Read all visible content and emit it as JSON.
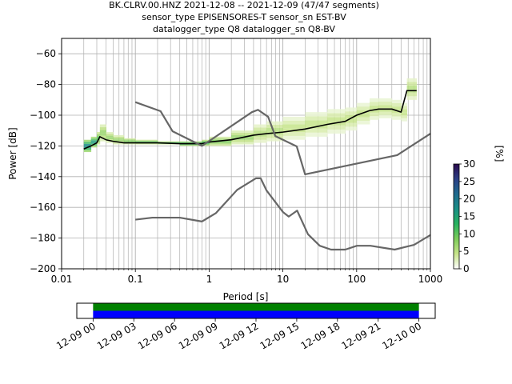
{
  "title": {
    "line1": "BK.CLRV.00.HNZ   2021-12-08 -- 2021-12-09  (47/47 segments)",
    "line2": "sensor_type EPISENSORES-T sensor_sn EST-BV",
    "line3": "datalogger_type Q8 datalogger_sn Q8-BV"
  },
  "chart_data": [
    {
      "type": "heatmap",
      "xlabel": "Period [s]",
      "ylabel": "Power [dB]",
      "x_scale": "log",
      "xlim": [
        0.01,
        1000
      ],
      "ylim": [
        -200,
        -50
      ],
      "grid": true,
      "x_ticks": [
        0.01,
        0.1,
        1,
        10,
        100,
        1000
      ],
      "x_tick_labels": [
        "0.01",
        "0.1",
        "1",
        "10",
        "100",
        "1000"
      ],
      "y_ticks": [
        -200,
        -180,
        -160,
        -140,
        -120,
        -100,
        -80,
        -60
      ],
      "y_tick_labels": [
        "−200",
        "−180",
        "−160",
        "−140",
        "−120",
        "−100",
        "−80",
        "−60"
      ],
      "colorbar": {
        "label": "[%]",
        "range": [
          0,
          30
        ],
        "ticks": [
          0,
          5,
          10,
          15,
          20,
          25,
          30
        ],
        "tick_labels": [
          "0",
          "5",
          "10",
          "15",
          "20",
          "25",
          "30"
        ],
        "colors": [
          "#ffffff",
          "#c7e48a",
          "#7ccc5a",
          "#27b35f",
          "#1a8f86",
          "#1f6b8f",
          "#2b3f85",
          "#2a0a4e"
        ]
      },
      "series": [
        {
          "role": "mode",
          "color": "#000000",
          "points": [
            [
              0.02,
              -122
            ],
            [
              0.025,
              -120
            ],
            [
              0.03,
              -118
            ],
            [
              0.033,
              -114
            ],
            [
              0.04,
              -116
            ],
            [
              0.05,
              -117
            ],
            [
              0.07,
              -118
            ],
            [
              0.1,
              -118
            ],
            [
              0.2,
              -118
            ],
            [
              0.4,
              -118.5
            ],
            [
              0.8,
              -118.5
            ],
            [
              1,
              -117.5
            ],
            [
              2,
              -116
            ],
            [
              4,
              -113
            ],
            [
              6,
              -112
            ],
            [
              10,
              -111
            ],
            [
              20,
              -109
            ],
            [
              40,
              -106
            ],
            [
              70,
              -104
            ],
            [
              100,
              -100
            ],
            [
              150,
              -97
            ],
            [
              200,
              -96
            ],
            [
              300,
              -96
            ],
            [
              400,
              -98
            ],
            [
              480,
              -84
            ],
            [
              600,
              -84
            ],
            [
              650,
              -84
            ]
          ]
        },
        {
          "role": "noise-model-high",
          "color": "#666666",
          "points": [
            [
              0.1,
              -91.5
            ],
            [
              0.22,
              -97.4
            ],
            [
              0.32,
              -110.5
            ],
            [
              0.8,
              -120
            ],
            [
              3.8,
              -98
            ],
            [
              4.6,
              -96.5
            ],
            [
              6.3,
              -101
            ],
            [
              7.9,
              -113.6
            ],
            [
              15.4,
              -120.3
            ],
            [
              20,
              -138.5
            ],
            [
              354.8,
              -126
            ],
            [
              1000,
              -112
            ]
          ]
        },
        {
          "role": "noise-model-low",
          "color": "#666666",
          "points": [
            [
              0.1,
              -168
            ],
            [
              0.17,
              -166.7
            ],
            [
              0.4,
              -166.7
            ],
            [
              0.8,
              -169.2
            ],
            [
              1.24,
              -163.7
            ],
            [
              2.4,
              -148.6
            ],
            [
              4.3,
              -141.1
            ],
            [
              5,
              -141.1
            ],
            [
              6,
              -149
            ],
            [
              10,
              -163
            ],
            [
              12,
              -166
            ],
            [
              15.6,
              -162.1
            ],
            [
              21.9,
              -177.5
            ],
            [
              31.6,
              -185
            ],
            [
              45,
              -187.5
            ],
            [
              70,
              -187.5
            ],
            [
              101,
              -185
            ],
            [
              154,
              -185
            ],
            [
              328,
              -187.5
            ],
            [
              600,
              -184.4
            ],
            [
              1000,
              -178
            ]
          ]
        }
      ],
      "histogram_band": [
        [
          0.02,
          -124,
          -116,
          20
        ],
        [
          0.025,
          -121,
          -114,
          18
        ],
        [
          0.03,
          -119,
          -111,
          12
        ],
        [
          0.033,
          -117,
          -106,
          8
        ],
        [
          0.04,
          -118,
          -111,
          8
        ],
        [
          0.05,
          -119,
          -113,
          8
        ],
        [
          0.07,
          -119,
          -115,
          10
        ],
        [
          0.1,
          -119,
          -116,
          12
        ],
        [
          0.2,
          -119,
          -117,
          14
        ],
        [
          0.4,
          -120,
          -117,
          16
        ],
        [
          0.8,
          -120,
          -116,
          14
        ],
        [
          1,
          -120,
          -114,
          10
        ],
        [
          2,
          -119,
          -110,
          8
        ],
        [
          4,
          -118,
          -106,
          6
        ],
        [
          6,
          -117,
          -104,
          6
        ],
        [
          10,
          -116,
          -101,
          5
        ],
        [
          20,
          -114,
          -98,
          5
        ],
        [
          40,
          -112,
          -96,
          5
        ],
        [
          70,
          -110,
          -95,
          5
        ],
        [
          100,
          -106,
          -92,
          5
        ],
        [
          150,
          -103,
          -89,
          5
        ],
        [
          200,
          -102,
          -89,
          5
        ],
        [
          300,
          -103,
          -90,
          5
        ],
        [
          400,
          -104,
          -92,
          5
        ],
        [
          480,
          -90,
          -76,
          6
        ],
        [
          600,
          -90,
          -76,
          6
        ],
        [
          650,
          -90,
          -76,
          6
        ]
      ]
    },
    {
      "type": "bar",
      "role": "data-coverage",
      "x_tick_labels": [
        "12-09 00",
        "12-09 03",
        "12-09 06",
        "12-09 09",
        "12-09 12",
        "12-09 15",
        "12-09 18",
        "12-09 21",
        "12-10 00"
      ],
      "x_hours": [
        0,
        3,
        6,
        9,
        12,
        15,
        18,
        21,
        24
      ],
      "xlim_hours": [
        -1.2,
        25.2
      ],
      "bands": [
        {
          "start_hour": 0,
          "end_hour": 24,
          "color": "#008000"
        },
        {
          "start_hour": 0,
          "end_hour": 24,
          "color": "#0000ff"
        }
      ]
    }
  ]
}
